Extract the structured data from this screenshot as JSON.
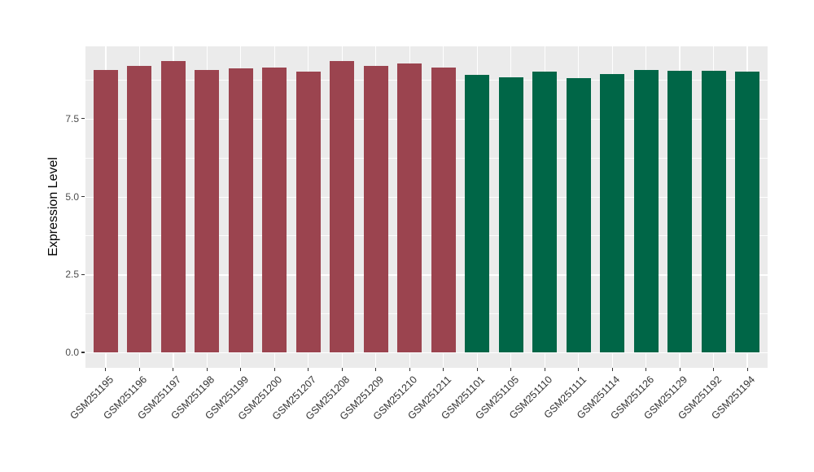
{
  "chart_data": {
    "type": "bar",
    "title": "",
    "xlabel": "",
    "ylabel": "Expression Level",
    "categories": [
      "GSM251195",
      "GSM251196",
      "GSM251197",
      "GSM251198",
      "GSM251199",
      "GSM251200",
      "GSM251207",
      "GSM251208",
      "GSM251209",
      "GSM251210",
      "GSM251211",
      "GSM251101",
      "GSM251105",
      "GSM251110",
      "GSM251111",
      "GSM251114",
      "GSM251126",
      "GSM251129",
      "GSM251192",
      "GSM251194"
    ],
    "values": [
      9.07,
      9.18,
      9.35,
      9.07,
      9.12,
      9.14,
      9.0,
      9.35,
      9.18,
      9.28,
      9.14,
      8.9,
      8.82,
      9.0,
      8.81,
      8.94,
      9.06,
      9.03,
      9.04,
      9.01
    ],
    "bar_colors": [
      "#9B444F",
      "#9B444F",
      "#9B444F",
      "#9B444F",
      "#9B444F",
      "#9B444F",
      "#9B444F",
      "#9B444F",
      "#9B444F",
      "#9B444F",
      "#9B444F",
      "#006647",
      "#006647",
      "#006647",
      "#006647",
      "#006647",
      "#006647",
      "#006647",
      "#006647",
      "#006647"
    ],
    "group_colors": {
      "left_group": "#9B444F",
      "right_group": "#006647"
    },
    "yticks": [
      0,
      2.5,
      5,
      7.5
    ],
    "ytick_labels": [
      "0.0",
      "2.5",
      "5.0",
      "7.5"
    ],
    "yticks_minor": [
      1.25,
      3.75,
      6.25,
      8.75
    ],
    "ylim": [
      -0.5,
      9.85
    ],
    "grid": true,
    "legend": false,
    "panel_background": "#EBEBEB",
    "gridline_color": "#FFFFFF",
    "axis_tick_color": "#333333",
    "axis_text_color": "#4D4D4D"
  }
}
